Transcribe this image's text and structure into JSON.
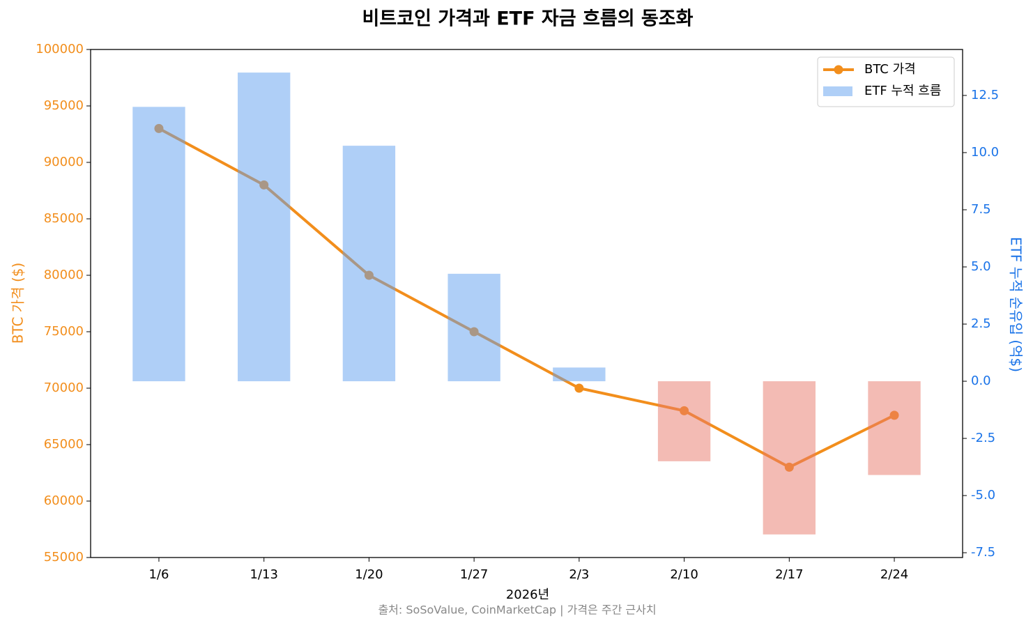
{
  "chart_data": {
    "type": "combo",
    "title": "비트코인 가격과 ETF 자금 흐름의 동조화",
    "xlabel": "2026년",
    "ylabel": "BTC 가격 ($)",
    "y2label": "ETF 누적 순유입 (억$)",
    "note": "출처: SoSoValue, CoinMarketCap | 가격은 주간 근사치",
    "categories": [
      "1/6",
      "1/13",
      "1/20",
      "1/27",
      "2/3",
      "2/10",
      "2/17",
      "2/24"
    ],
    "series": [
      {
        "name": "BTC 가격",
        "type": "line",
        "color": "#f28e1c",
        "values": [
          93000,
          88000,
          80000,
          75000,
          70000,
          68000,
          63000,
          67600
        ]
      },
      {
        "name": "ETF 누적 흐름",
        "type": "bar",
        "axis": "y2",
        "color": "#5fa0ef",
        "negative_color": "#e8786a",
        "values": [
          12.0,
          13.5,
          10.3,
          4.7,
          0.6,
          -3.5,
          -6.7,
          -4.1
        ]
      }
    ],
    "ylim": [
      55000,
      100000
    ],
    "yticks": [
      55000,
      60000,
      65000,
      70000,
      75000,
      80000,
      85000,
      90000,
      95000,
      100000
    ],
    "y2lim": [
      -7.71,
      14.51
    ],
    "y2ticks": [
      -7.5,
      {
        "value": -5,
        "label": "-5.0"
      },
      -2.5,
      {
        "value": 0,
        "label": "0.0"
      },
      2.5,
      {
        "value": 5,
        "label": "5.0"
      },
      7.5,
      {
        "value": 10,
        "label": "10.0"
      },
      12.5
    ],
    "ylabel_color": "#f28e1c",
    "y2label_color": "#1a73e8",
    "legend": "upper right"
  }
}
